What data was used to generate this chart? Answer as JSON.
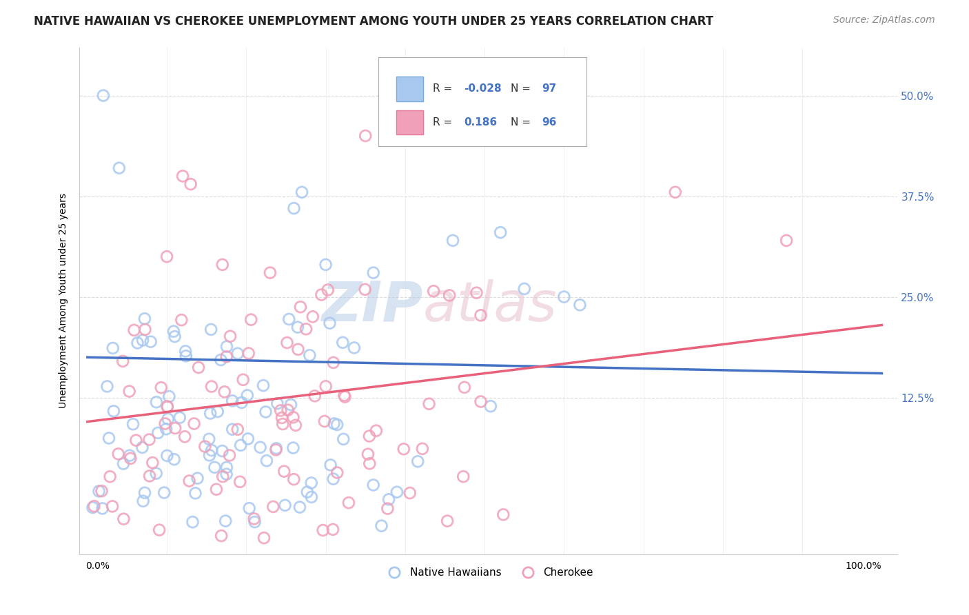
{
  "title": "NATIVE HAWAIIAN VS CHEROKEE UNEMPLOYMENT AMONG YOUTH UNDER 25 YEARS CORRELATION CHART",
  "source": "Source: ZipAtlas.com",
  "ylabel": "Unemployment Among Youth under 25 years",
  "ytick_labels": [
    "12.5%",
    "25.0%",
    "37.5%",
    "50.0%"
  ],
  "ytick_values": [
    0.125,
    0.25,
    0.375,
    0.5
  ],
  "xlim": [
    -0.01,
    1.02
  ],
  "ylim": [
    -0.07,
    0.56
  ],
  "blue_color": "#A8C8F0",
  "pink_color": "#F0A0B8",
  "blue_edge_color": "#7AABDF",
  "pink_edge_color": "#E87898",
  "blue_line_color": "#4472C4",
  "pink_line_color": "#E8607A",
  "legend_label_blue": "Native Hawaiians",
  "legend_label_pink": "Cherokee",
  "title_fontsize": 12,
  "source_fontsize": 10,
  "ylabel_fontsize": 10,
  "background_color": "#FFFFFF",
  "grid_color": "#D8D8D8",
  "blue_line_y0": 0.175,
  "blue_line_y1": 0.155,
  "pink_line_y0": 0.095,
  "pink_line_y1": 0.215
}
